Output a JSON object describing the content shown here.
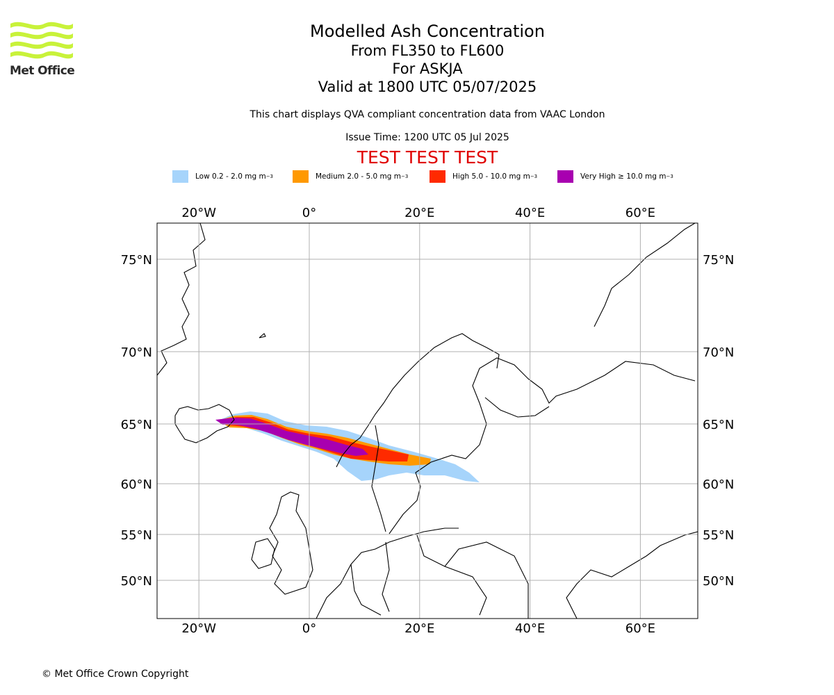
{
  "header": {
    "logo_text": "Met Office",
    "title": "Modelled Ash Concentration",
    "levels": "From FL350 to FL600",
    "volcano": "For ASKJA",
    "valid": "Valid at 1800 UTC 05/07/2025",
    "description": "This chart displays QVA compliant concentration data from VAAC London",
    "issue": "Issue Time: 1200 UTC 05 Jul 2025",
    "test_banner": "TEST TEST TEST"
  },
  "legend": [
    {
      "label": "Low 0.2 - 2.0 mg m",
      "sup": "−3",
      "color": "#a6d4fb"
    },
    {
      "label": "Medium 2.0 - 5.0 mg m",
      "sup": "−3",
      "color": "#ff9900"
    },
    {
      "label": "High 5.0 - 10.0 mg m",
      "sup": "−3",
      "color": "#ff2a00"
    },
    {
      "label": "Very High  ≥  10.0 mg m",
      "sup": "−3",
      "color": "#a800b0"
    }
  ],
  "map": {
    "lon_labels": [
      "20°W",
      "0°",
      "20°E",
      "40°E",
      "60°E"
    ],
    "lon_values": [
      -20,
      0,
      20,
      40,
      60
    ],
    "lat_labels": [
      "75°N",
      "70°N",
      "65°N",
      "60°N",
      "55°N",
      "50°N"
    ],
    "lat_values": [
      75,
      70,
      65,
      60,
      55,
      50
    ],
    "extent": {
      "lon_min": -27.5,
      "lon_max": 70,
      "lat_min": 47,
      "lat_max": 77
    }
  },
  "footer": {
    "copyright": "© Met Office Crown Copyright"
  }
}
